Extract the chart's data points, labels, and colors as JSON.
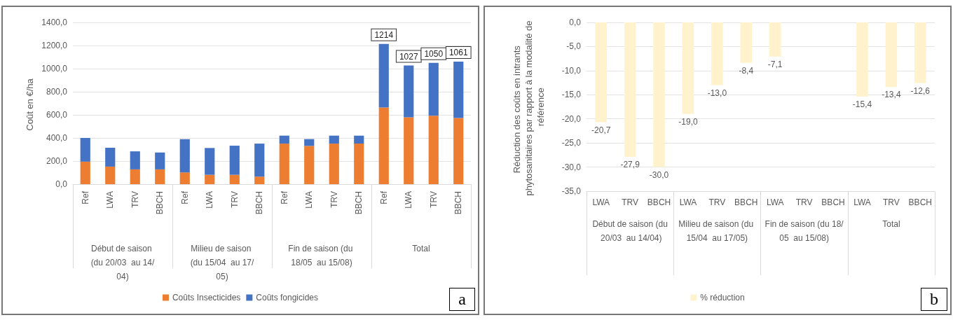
{
  "chart_data": [
    {
      "type": "bar",
      "ylabel": "Coût en €/ha",
      "stacked": true,
      "categories": [
        "Ref",
        "LWA",
        "TRV",
        "BBCH",
        "Ref",
        "LWA",
        "TRV",
        "BBCH",
        "Ref",
        "LWA",
        "TRV",
        "BBCH",
        "Ref",
        "LWA",
        "TRV",
        "BBCH"
      ],
      "series": [
        {
          "name": "Coûts Insecticides",
          "color": "#ed7d31",
          "values": [
            195,
            152,
            128,
            128,
            101,
            81,
            81,
            65,
            351,
            331,
            351,
            351,
            664,
            579,
            593,
            573
          ]
        },
        {
          "name": "Coûts fongicides",
          "color": "#4472c4",
          "values": [
            205,
            163,
            156,
            146,
            289,
            232,
            252,
            286,
            69,
            59,
            69,
            69,
            550,
            448,
            457,
            488
          ]
        }
      ],
      "totals": [
        null,
        null,
        null,
        null,
        null,
        null,
        null,
        null,
        null,
        null,
        null,
        null,
        "1214",
        "1027",
        "1050",
        "1061"
      ],
      "ylim": [
        0,
        1400
      ],
      "yticks": [
        {
          "value": 0,
          "label": "0,0"
        },
        {
          "value": 200,
          "label": "200,0"
        },
        {
          "value": 400,
          "label": "400,0"
        },
        {
          "value": 600,
          "label": "600,0"
        },
        {
          "value": 800,
          "label": "800,0"
        },
        {
          "value": 1000,
          "label": "1000,0"
        },
        {
          "value": 1200,
          "label": "1200,0"
        },
        {
          "value": 1400,
          "label": "1400,0"
        }
      ],
      "grid": "y",
      "legend": "bottom",
      "annotations": [
        "Début de saison (du 20/03  au 14/04)",
        "Milieu de saison (du 15/04  au 17/05)",
        "Fin de saison (du 18/05  au 15/08)",
        "Total",
        "a"
      ]
    },
    {
      "type": "bar",
      "ylabel": "Réduction des coûts en intrants phytosanitaires par rapport à la modalité de référence",
      "categories": [
        "LWA",
        "TRV",
        "BBCH",
        "LWA",
        "TRV",
        "BBCH",
        "LWA",
        "TRV",
        "BBCH",
        "LWA",
        "TRV",
        "BBCH"
      ],
      "series": [
        {
          "name": "% réduction",
          "color": "#fff2cc",
          "values": [
            -20.7,
            -27.9,
            -30.0,
            -19.0,
            -13.0,
            -8.4,
            -7.1,
            null,
            null,
            -15.4,
            -13.4,
            -12.6
          ],
          "value_labels": [
            "-20,7",
            "-27,9",
            "-30,0",
            "-19,0",
            "-13,0",
            "-8,4",
            "-7,1",
            null,
            null,
            "-15,4",
            "-13,4",
            "-12,6"
          ]
        }
      ],
      "ylim": [
        -35,
        0
      ],
      "yticks": [
        {
          "value": 0,
          "label": "0,0"
        },
        {
          "value": -5,
          "label": "-5,0"
        },
        {
          "value": -10,
          "label": "-10,0"
        },
        {
          "value": -15,
          "label": "-15,0"
        },
        {
          "value": -20,
          "label": "-20,0"
        },
        {
          "value": -25,
          "label": "-25,0"
        },
        {
          "value": -30,
          "label": "-30,0"
        },
        {
          "value": -35,
          "label": "-35,0"
        }
      ],
      "grid": "y",
      "legend": "bottom",
      "annotations": [
        "Début de saison (du 20/03  au 14/04)",
        "Milieu de saison (du 15/04  au 17/05)",
        "Fin de saison (du 18/05  au 15/08)",
        "Total",
        "b"
      ]
    }
  ]
}
